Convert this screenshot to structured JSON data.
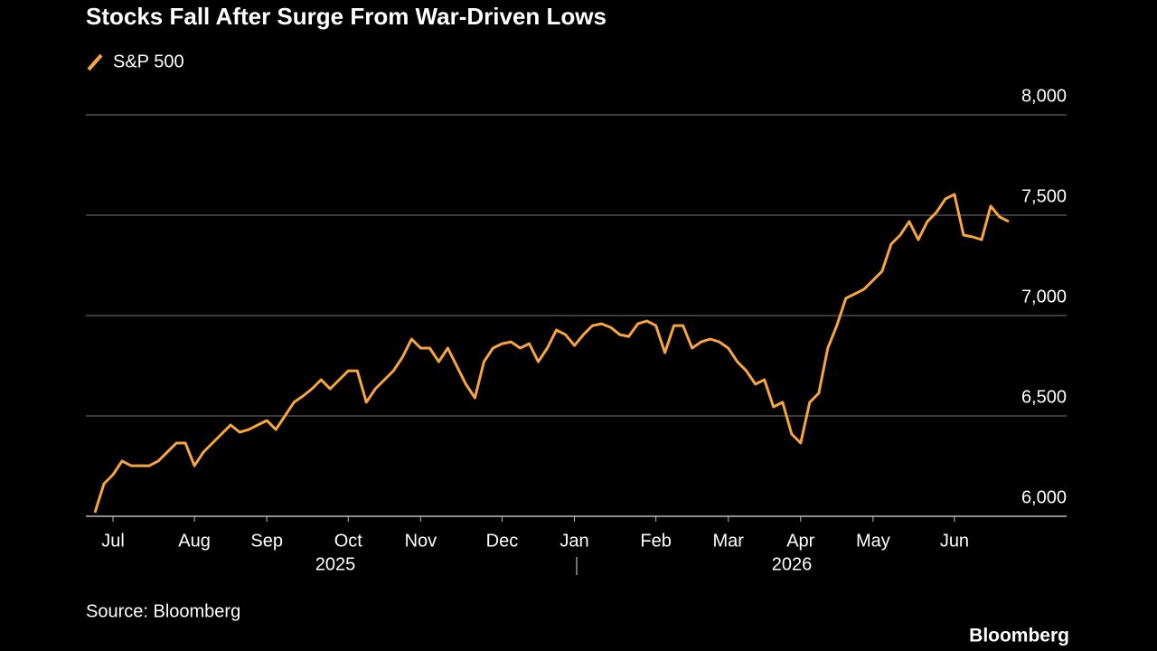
{
  "chart_data": {
    "type": "line",
    "title": "Stocks Fall After Surge From War-Driven Lows",
    "source": "Source: Bloomberg",
    "brand": "Bloomberg",
    "categories": [
      null,
      null,
      "Jul",
      null,
      null,
      null,
      null,
      null,
      null,
      null,
      null,
      "Aug",
      null,
      null,
      null,
      null,
      null,
      null,
      null,
      "Sep",
      null,
      null,
      null,
      null,
      null,
      null,
      null,
      null,
      "Oct",
      null,
      null,
      null,
      null,
      null,
      null,
      null,
      "Nov",
      null,
      null,
      null,
      null,
      null,
      null,
      null,
      null,
      "Dec",
      null,
      null,
      null,
      null,
      null,
      null,
      null,
      "Jan",
      null,
      null,
      null,
      null,
      null,
      null,
      null,
      null,
      "Feb",
      null,
      null,
      null,
      null,
      null,
      null,
      null,
      "Mar",
      null,
      null,
      null,
      null,
      null,
      null,
      null,
      "Apr",
      null,
      null,
      null,
      null,
      null,
      null,
      null,
      "May",
      null,
      null,
      null,
      null,
      null,
      null,
      null,
      null,
      "Jun",
      null,
      null,
      null,
      null,
      null,
      null
    ],
    "x_group_labels": [
      "2025",
      "2026"
    ],
    "series": [
      {
        "name": "S&P 500",
        "color": "#f7a541",
        "values": [
          6018,
          6162,
          6207,
          6275,
          6252,
          6252,
          6252,
          6275,
          6320,
          6365,
          6365,
          6252,
          6320,
          6365,
          6410,
          6455,
          6419,
          6432,
          6455,
          6477,
          6432,
          6500,
          6568,
          6599,
          6635,
          6680,
          6635,
          6680,
          6725,
          6725,
          6568,
          6635,
          6680,
          6725,
          6793,
          6883,
          6838,
          6838,
          6770,
          6838,
          6748,
          6658,
          6590,
          6770,
          6838,
          6860,
          6869,
          6838,
          6860,
          6770,
          6838,
          6928,
          6905,
          6851,
          6905,
          6950,
          6959,
          6941,
          6905,
          6896,
          6959,
          6973,
          6950,
          6815,
          6950,
          6950,
          6838,
          6869,
          6883,
          6869,
          6838,
          6770,
          6725,
          6658,
          6680,
          6545,
          6568,
          6410,
          6365,
          6568,
          6613,
          6838,
          6950,
          7086,
          7108,
          7131,
          7176,
          7221,
          7356,
          7401,
          7468,
          7378,
          7468,
          7514,
          7581,
          7604,
          7401,
          7392,
          7378,
          7545,
          7491,
          7468
        ]
      }
    ],
    "ylim": [
      6000,
      8000
    ],
    "yticks": [
      {
        "value": 6000,
        "label": "6,000"
      },
      {
        "value": 6500,
        "label": "6,500"
      },
      {
        "value": 7000,
        "label": "7,000"
      },
      {
        "value": 7500,
        "label": "7,500"
      },
      {
        "value": 8000,
        "label": "8,000"
      }
    ],
    "grid": true
  }
}
